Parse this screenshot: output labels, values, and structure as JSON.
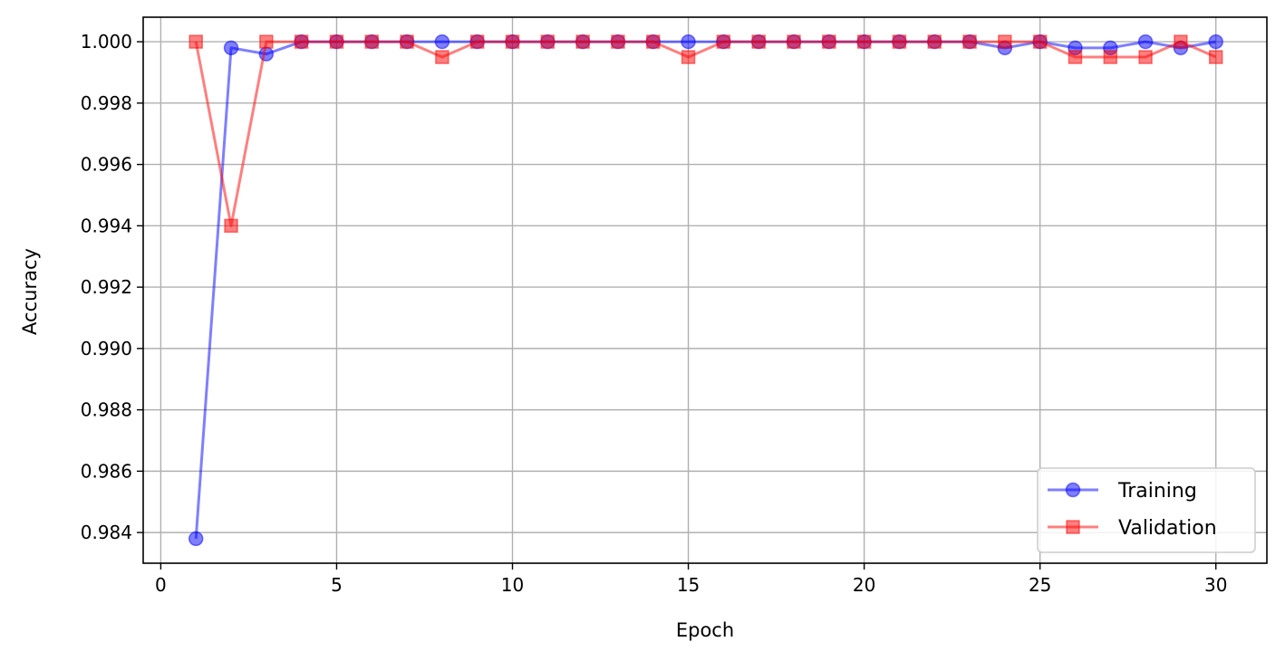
{
  "chart_data": {
    "type": "line",
    "title": "",
    "xlabel": "Epoch",
    "ylabel": "Accuracy",
    "xlim": [
      -0.5,
      31.45
    ],
    "ylim": [
      0.983,
      1.0008
    ],
    "x_ticks": [
      0,
      5,
      10,
      15,
      20,
      25,
      30
    ],
    "y_ticks": [
      0.984,
      0.986,
      0.988,
      0.99,
      0.992,
      0.994,
      0.996,
      0.998,
      1.0
    ],
    "x_tick_labels": [
      "0",
      "5",
      "10",
      "15",
      "20",
      "25",
      "30"
    ],
    "y_tick_labels": [
      "0.984",
      "0.986",
      "0.988",
      "0.990",
      "0.992",
      "0.994",
      "0.996",
      "0.998",
      "1.000"
    ],
    "grid": true,
    "legend_position": "bottom-right",
    "x": [
      1,
      2,
      3,
      4,
      5,
      6,
      7,
      8,
      9,
      10,
      11,
      12,
      13,
      14,
      15,
      16,
      17,
      18,
      19,
      20,
      21,
      22,
      23,
      24,
      25,
      26,
      27,
      28,
      29,
      30
    ],
    "series": [
      {
        "name": "Training",
        "color": "#0000ff",
        "marker": "circle",
        "values": [
          0.9838,
          0.9998,
          0.9996,
          1.0,
          1.0,
          1.0,
          1.0,
          1.0,
          1.0,
          1.0,
          1.0,
          1.0,
          1.0,
          1.0,
          1.0,
          1.0,
          1.0,
          1.0,
          1.0,
          1.0,
          1.0,
          1.0,
          1.0,
          0.9998,
          1.0,
          0.9998,
          0.9998,
          1.0,
          0.9998,
          1.0
        ]
      },
      {
        "name": "Validation",
        "color": "#ff0000",
        "marker": "square",
        "values": [
          1.0,
          0.994,
          1.0,
          1.0,
          1.0,
          1.0,
          1.0,
          0.9995,
          1.0,
          1.0,
          1.0,
          1.0,
          1.0,
          1.0,
          0.9995,
          1.0,
          1.0,
          1.0,
          1.0,
          1.0,
          1.0,
          1.0,
          1.0,
          1.0,
          1.0,
          0.9995,
          0.9995,
          0.9995,
          1.0,
          0.9995
        ]
      }
    ]
  }
}
